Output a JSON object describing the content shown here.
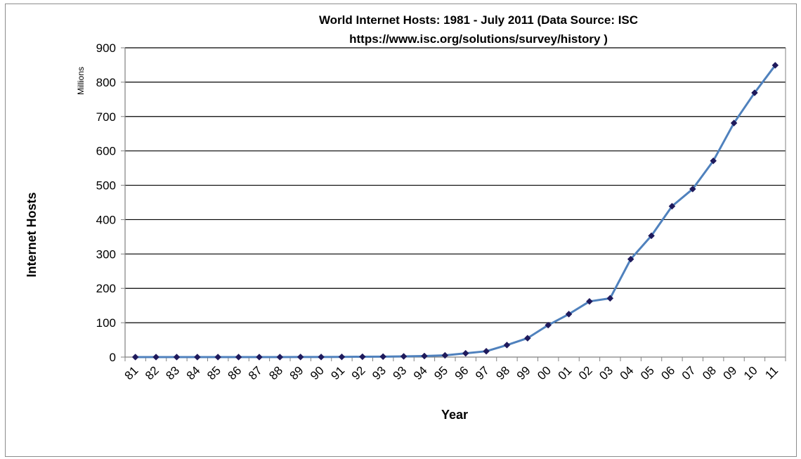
{
  "chart_data": {
    "type": "line",
    "title_line1": "World Internet Hosts: 1981 - July 2011 (Data Source: ISC",
    "title_line2": "https://www.isc.org/solutions/survey/history )",
    "xlabel": "Year",
    "ylabel": "Internet Hosts",
    "y_units": "Millions",
    "ylim": [
      0,
      900
    ],
    "y_ticks": [
      0,
      100,
      200,
      300,
      400,
      500,
      600,
      700,
      800,
      900
    ],
    "grid": "horizontal",
    "legend": "none",
    "categories": [
      "81",
      "82",
      "83",
      "84",
      "85",
      "86",
      "87",
      "88",
      "89",
      "90",
      "91",
      "92",
      "93",
      "93",
      "94",
      "95",
      "96",
      "97",
      "98",
      "99",
      "00",
      "01",
      "02",
      "03",
      "04",
      "05",
      "06",
      "07",
      "08",
      "09",
      "10",
      "11"
    ],
    "series": [
      {
        "values": [
          0,
          0,
          0,
          0,
          0,
          0,
          0,
          0,
          0.2,
          0.3,
          0.6,
          1,
          1.3,
          2,
          3,
          5,
          11,
          17,
          35,
          55,
          93,
          125,
          162,
          171,
          285,
          353,
          439,
          489,
          571,
          681,
          769,
          849
        ]
      }
    ],
    "colors": {
      "line": "#4f81bd",
      "marker": "#1f1a5c",
      "grid": "#000000",
      "axis": "#808080"
    }
  }
}
